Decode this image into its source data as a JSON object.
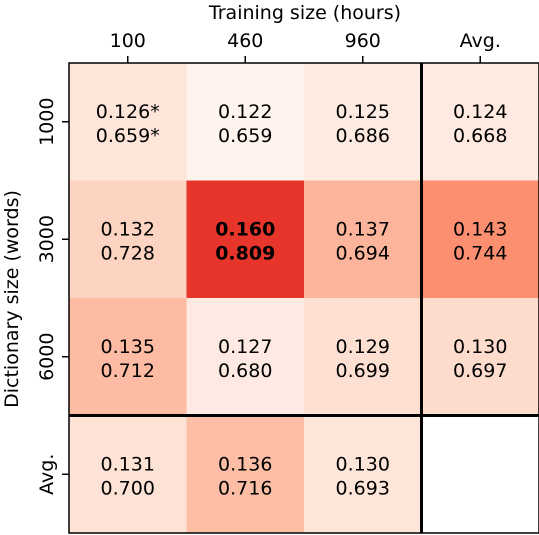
{
  "chart_data": {
    "type": "heatmap",
    "title": "",
    "xlabel": "Training size (hours)",
    "ylabel": "Dictionary size (words)",
    "x_categories": [
      "100",
      "460",
      "960",
      "Avg."
    ],
    "y_categories": [
      "1000",
      "3000",
      "6000",
      "Avg."
    ],
    "colormap": "Reds",
    "grid": false,
    "separator_lines": "before last row and before last column",
    "cells": [
      [
        {
          "top": "0.126*",
          "bottom": "0.659*",
          "value": 0.126
        },
        {
          "top": "0.122",
          "bottom": "0.659",
          "value": 0.122
        },
        {
          "top": "0.125",
          "bottom": "0.686",
          "value": 0.125
        },
        {
          "top": "0.124",
          "bottom": "0.668",
          "value": 0.124
        }
      ],
      [
        {
          "top": "0.132",
          "bottom": "0.728",
          "value": 0.132
        },
        {
          "top": "0.160",
          "bottom": "0.809",
          "value": 0.16,
          "bold": true
        },
        {
          "top": "0.137",
          "bottom": "0.694",
          "value": 0.137
        },
        {
          "top": "0.143",
          "bottom": "0.744",
          "value": 0.143
        }
      ],
      [
        {
          "top": "0.135",
          "bottom": "0.712",
          "value": 0.135
        },
        {
          "top": "0.127",
          "bottom": "0.680",
          "value": 0.127
        },
        {
          "top": "0.129",
          "bottom": "0.699",
          "value": 0.129
        },
        {
          "top": "0.130",
          "bottom": "0.697",
          "value": 0.13
        }
      ],
      [
        {
          "top": "0.131",
          "bottom": "0.700",
          "value": 0.131
        },
        {
          "top": "0.136",
          "bottom": "0.716",
          "value": 0.136
        },
        {
          "top": "0.130",
          "bottom": "0.693",
          "value": 0.13
        },
        null
      ]
    ],
    "cell_colors": [
      [
        "#fde5da",
        "#fff3ee",
        "#fdebe2",
        "#feeae1"
      ],
      [
        "#fdd3c2",
        "#e8352b",
        "#fcb59b",
        "#fc8f6f"
      ],
      [
        "#fcbba2",
        "#feeae2",
        "#fde0d2",
        "#fddccd"
      ],
      [
        "#fde3d6",
        "#fcbea5",
        "#fde5d9",
        "#ffffff"
      ]
    ]
  }
}
